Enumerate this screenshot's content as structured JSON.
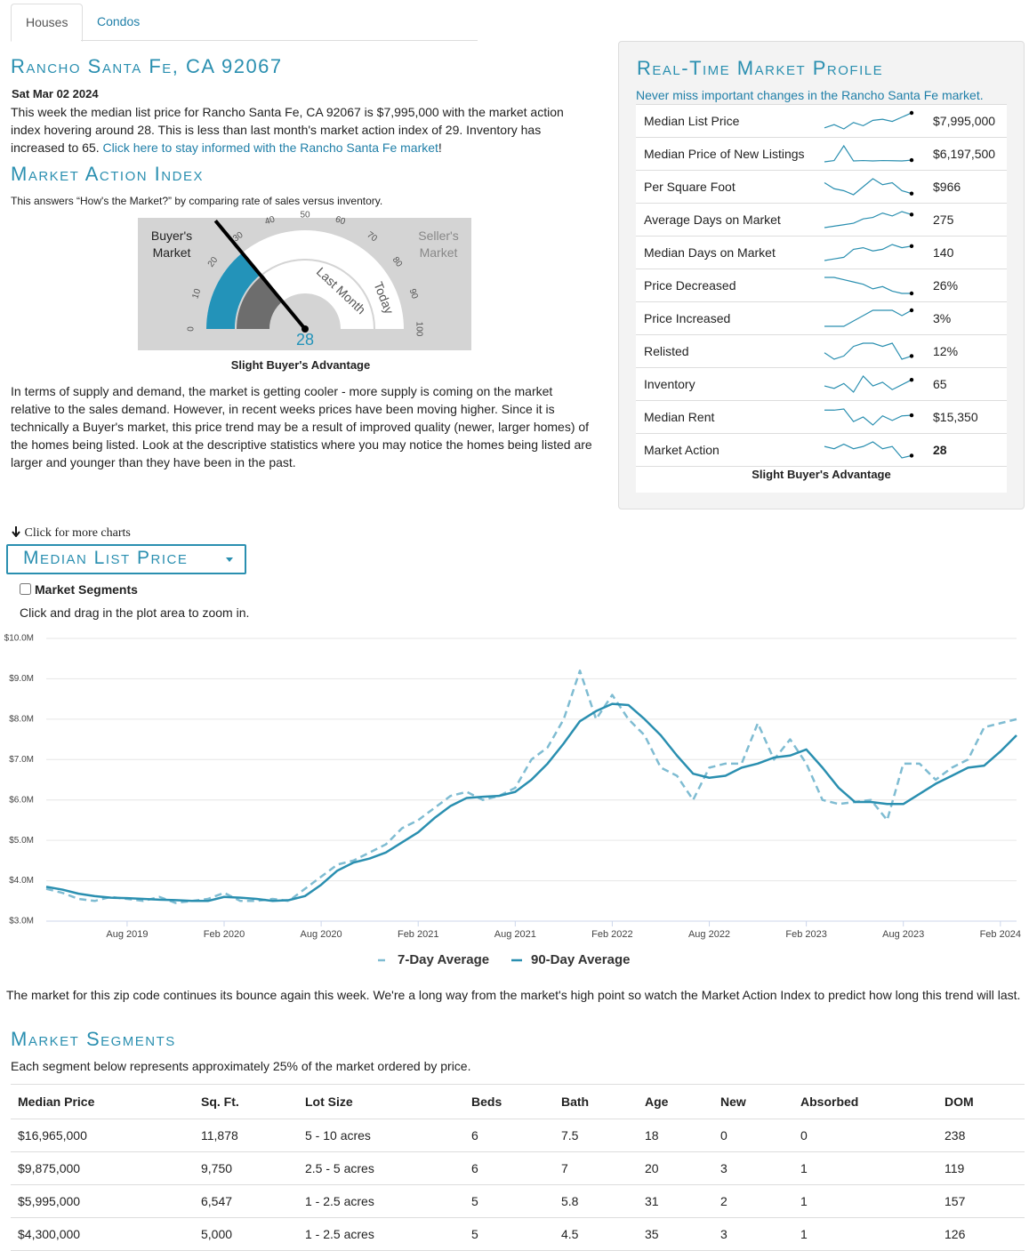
{
  "tabs": [
    "Houses",
    "Condos"
  ],
  "header": {
    "title": "Rancho Santa Fe, CA 92067",
    "date": "Sat Mar 02 2024",
    "summary": "This week the median list price for Rancho Santa Fe, CA 92067 is $7,995,000 with the market action index hovering around 28. This is less than last month's market action index of 29. Inventory has increased to 65.",
    "summary_link": "Click here to stay informed with the Rancho Santa Fe market",
    "summary_end": "!"
  },
  "mai": {
    "title": "Market Action Index",
    "subtitle": "This answers “How's the Market?” by comparing rate of sales versus inventory.",
    "buyer": "Buyer's Market",
    "seller": "Seller's Market",
    "value": 28,
    "last_month": 29,
    "ticks": [
      0,
      10,
      20,
      30,
      40,
      50,
      60,
      70,
      80,
      90,
      100
    ],
    "ring_inner": "Last Month",
    "ring_outer": "Today",
    "caption": "Slight Buyer's Advantage",
    "commentary": "In terms of supply and demand, the market is getting cooler - more supply is coming on the market relative to the sales demand. However, in recent weeks prices have been moving higher. Since it is technically a Buyer's market, this price trend may be a result of improved quality (newer, larger homes) of the homes being listed. Look at the descriptive statistics where you may notice the homes being listed are larger and younger than they have been in the past."
  },
  "profile": {
    "title": "Real-Time Market Profile",
    "subtitle": "Never miss important changes in the Rancho Santa Fe market.",
    "rows": [
      {
        "label": "Median List Price",
        "value": "$7,995,000",
        "trend": [
          6600000,
          6900000,
          6500000,
          7100000,
          6800000,
          7300000,
          7400000,
          7200000,
          7600000,
          7995000
        ]
      },
      {
        "label": "Median Price of New Listings",
        "value": "$6,197,500",
        "trend": [
          5800000,
          6100000,
          9500000,
          6000000,
          6100000,
          6000000,
          6100000,
          6050000,
          6000000,
          6197500
        ]
      },
      {
        "label": "Per Square Foot",
        "value": "$966",
        "trend": [
          1020,
          990,
          980,
          960,
          1000,
          1040,
          1010,
          1020,
          980,
          966
        ]
      },
      {
        "label": "Average Days on Market",
        "value": "275",
        "trend": [
          230,
          235,
          240,
          245,
          260,
          265,
          280,
          270,
          285,
          275
        ]
      },
      {
        "label": "Median Days on Market",
        "value": "140",
        "trend": [
          95,
          100,
          105,
          130,
          135,
          125,
          130,
          145,
          135,
          140
        ]
      },
      {
        "label": "Price Decreased",
        "value": "26%",
        "trend": [
          33,
          33,
          32,
          31,
          30,
          28,
          29,
          27,
          26,
          26
        ]
      },
      {
        "label": "Price Increased",
        "value": "3%",
        "trend": [
          0,
          0,
          0,
          1,
          2,
          3,
          3,
          3,
          2,
          3
        ]
      },
      {
        "label": "Relisted",
        "value": "12%",
        "trend": [
          13,
          11,
          12,
          15,
          16,
          16,
          15,
          16,
          11,
          12
        ]
      },
      {
        "label": "Inventory",
        "value": "65",
        "trend": [
          60,
          58,
          62,
          55,
          68,
          60,
          63,
          57,
          61,
          65
        ]
      },
      {
        "label": "Median Rent",
        "value": "$15,350",
        "trend": [
          15800,
          15800,
          15900,
          14800,
          15200,
          14500,
          15300,
          14900,
          15300,
          15350
        ]
      },
      {
        "label": "Market Action",
        "value": "28",
        "trend": [
          32,
          31,
          33,
          31,
          32,
          34,
          31,
          32,
          27,
          28
        ]
      }
    ],
    "caption": "Slight Buyer's Advantage"
  },
  "chart_controls": {
    "more": "Click for more charts",
    "selector": "Median List Price",
    "checkbox": "Market Segments",
    "hint": "Click and drag in the plot area to zoom in."
  },
  "chart_data": {
    "type": "line",
    "x": [
      "2019-03",
      "2019-04",
      "2019-05",
      "2019-06",
      "2019-07",
      "2019-08",
      "2019-09",
      "2019-10",
      "2019-11",
      "2019-12",
      "2020-01",
      "2020-02",
      "2020-03",
      "2020-04",
      "2020-05",
      "2020-06",
      "2020-07",
      "2020-08",
      "2020-09",
      "2020-10",
      "2020-11",
      "2020-12",
      "2021-01",
      "2021-02",
      "2021-03",
      "2021-04",
      "2021-05",
      "2021-06",
      "2021-07",
      "2021-08",
      "2021-09",
      "2021-10",
      "2021-11",
      "2021-12",
      "2022-01",
      "2022-02",
      "2022-03",
      "2022-04",
      "2022-05",
      "2022-06",
      "2022-07",
      "2022-08",
      "2022-09",
      "2022-10",
      "2022-11",
      "2022-12",
      "2023-01",
      "2023-02",
      "2023-03",
      "2023-04",
      "2023-05",
      "2023-06",
      "2023-07",
      "2023-08",
      "2023-09",
      "2023-10",
      "2023-11",
      "2023-12",
      "2024-01",
      "2024-02",
      "2024-03"
    ],
    "series": [
      {
        "name": "7-Day Average",
        "color": "#7fbcd2",
        "dashed": true,
        "values": [
          3800000,
          3700000,
          3550000,
          3500000,
          3600000,
          3550000,
          3500000,
          3600000,
          3450000,
          3500000,
          3550000,
          3700000,
          3500000,
          3500000,
          3550000,
          3500000,
          3800000,
          4100000,
          4400000,
          4500000,
          4700000,
          4900000,
          5300000,
          5500000,
          5800000,
          6100000,
          6200000,
          6000000,
          6100000,
          6300000,
          7000000,
          7300000,
          8000000,
          9200000,
          8000000,
          8600000,
          8000000,
          7600000,
          6800000,
          6600000,
          6000000,
          6800000,
          6900000,
          6900000,
          7900000,
          7000000,
          7500000,
          6900000,
          6000000,
          5900000,
          5950000,
          6000000,
          5500000,
          6900000,
          6900000,
          6500000,
          6800000,
          7000000,
          7800000,
          7900000,
          8000000
        ]
      },
      {
        "name": "90-Day Average",
        "color": "#2a8fb0",
        "dashed": false,
        "values": [
          3850000,
          3780000,
          3680000,
          3620000,
          3580000,
          3570000,
          3550000,
          3530000,
          3520000,
          3500000,
          3500000,
          3600000,
          3580000,
          3550000,
          3500000,
          3520000,
          3620000,
          3900000,
          4250000,
          4450000,
          4550000,
          4700000,
          4950000,
          5200000,
          5550000,
          5850000,
          6050000,
          6080000,
          6100000,
          6200000,
          6500000,
          6900000,
          7400000,
          7950000,
          8200000,
          8380000,
          8350000,
          8000000,
          7600000,
          7100000,
          6650000,
          6550000,
          6600000,
          6800000,
          6900000,
          7050000,
          7100000,
          7250000,
          6800000,
          6300000,
          5950000,
          5950000,
          5900000,
          5900000,
          6150000,
          6400000,
          6600000,
          6800000,
          6850000,
          7200000,
          7600000
        ]
      }
    ],
    "xlim": [
      "2019-03",
      "2024-03"
    ],
    "ylim": [
      3000000,
      10000000
    ],
    "yticks": [
      {
        "value": 3000000,
        "label": "$3.0M"
      },
      {
        "value": 4000000,
        "label": "$4.0M"
      },
      {
        "value": 5000000,
        "label": "$5.0M"
      },
      {
        "value": 6000000,
        "label": "$6.0M"
      },
      {
        "value": 7000000,
        "label": "$7.0M"
      },
      {
        "value": 8000000,
        "label": "$8.0M"
      },
      {
        "value": 9000000,
        "label": "$9.0M"
      },
      {
        "value": 10000000,
        "label": "$10.0M"
      }
    ],
    "xticks": [
      {
        "value": "2019-08",
        "label": "Aug 2019"
      },
      {
        "value": "2020-02",
        "label": "Feb 2020"
      },
      {
        "value": "2020-08",
        "label": "Aug 2020"
      },
      {
        "value": "2021-02",
        "label": "Feb 2021"
      },
      {
        "value": "2021-08",
        "label": "Aug 2021"
      },
      {
        "value": "2022-02",
        "label": "Feb 2022"
      },
      {
        "value": "2022-08",
        "label": "Aug 2022"
      },
      {
        "value": "2023-02",
        "label": "Feb 2023"
      },
      {
        "value": "2023-08",
        "label": "Aug 2023"
      },
      {
        "value": "2024-02",
        "label": "Feb 2024"
      }
    ],
    "grid": true,
    "legend": "bottom"
  },
  "chart_note": "The market for this zip code continues its bounce again this week. We're a long way from the market's high point so watch the Market Action Index to predict how long this trend will last.",
  "segments": {
    "title": "Market Segments",
    "subtitle": "Each segment below represents approximately 25% of the market ordered by price.",
    "columns": [
      "Median Price",
      "Sq. Ft.",
      "Lot Size",
      "Beds",
      "Bath",
      "Age",
      "New",
      "Absorbed",
      "DOM"
    ],
    "rows": [
      [
        "$16,965,000",
        "11,878",
        "5 - 10 acres",
        "6",
        "7.5",
        "18",
        "0",
        "0",
        "238"
      ],
      [
        "$9,875,000",
        "9,750",
        "2.5 - 5 acres",
        "6",
        "7",
        "20",
        "3",
        "1",
        "119"
      ],
      [
        "$5,995,000",
        "6,547",
        "1 - 2.5 acres",
        "5",
        "5.8",
        "31",
        "2",
        "1",
        "157"
      ],
      [
        "$4,300,000",
        "5,000",
        "1 - 2.5 acres",
        "5",
        "4.5",
        "35",
        "3",
        "1",
        "126"
      ]
    ]
  }
}
